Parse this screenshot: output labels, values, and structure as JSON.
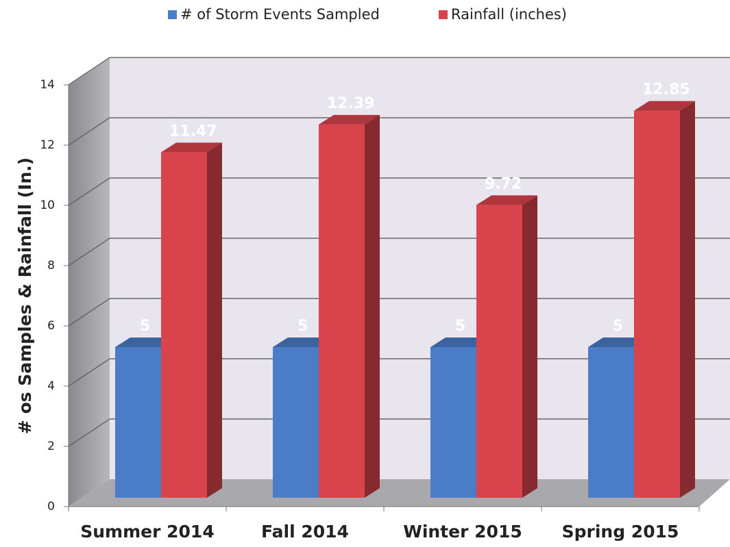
{
  "chart_data": {
    "type": "bar",
    "y_axis_label": "# os Samples & Rainfall (In.)",
    "categories": [
      "Summer 2014",
      "Fall 2014",
      "Winter 2015",
      "Spring 2015"
    ],
    "series": [
      {
        "name": "# of Storm Events Sampled",
        "color": "#4a7cc8",
        "values": [
          5,
          5,
          5,
          5
        ]
      },
      {
        "name": "Rainfall (inches)",
        "color": "#d9434b",
        "values": [
          11.47,
          12.39,
          9.72,
          12.85
        ]
      }
    ],
    "ylim": [
      0,
      14
    ],
    "yticks": [
      0,
      2,
      4,
      6,
      8,
      10,
      12,
      14
    ],
    "grid": true,
    "legend": "top"
  }
}
